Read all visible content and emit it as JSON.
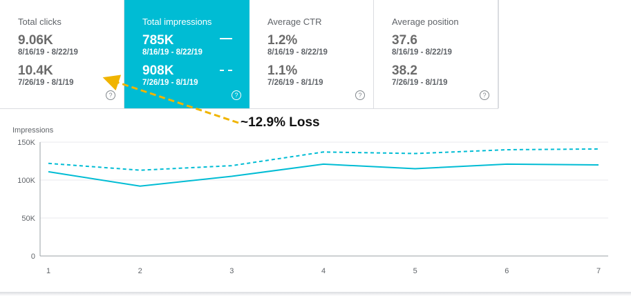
{
  "cards": [
    {
      "title": "Total clicks",
      "current_value": "9.06K",
      "current_range": "8/16/19 - 8/22/19",
      "previous_value": "10.4K",
      "previous_range": "7/26/19 - 8/1/19",
      "active": false
    },
    {
      "title": "Total impressions",
      "current_value": "785K",
      "current_range": "8/16/19 - 8/22/19",
      "previous_value": "908K",
      "previous_range": "7/26/19 - 8/1/19",
      "active": true
    },
    {
      "title": "Average CTR",
      "current_value": "1.2%",
      "current_range": "8/16/19 - 8/22/19",
      "previous_value": "1.1%",
      "previous_range": "7/26/19 - 8/1/19",
      "active": false
    },
    {
      "title": "Average position",
      "current_value": "37.6",
      "current_range": "8/16/19 - 8/22/19",
      "previous_value": "38.2",
      "previous_range": "7/26/19 - 8/1/19",
      "active": false
    }
  ],
  "help_icon": "?",
  "annotation": "~12.9% Loss",
  "colors": {
    "accent": "#00bcd4",
    "arrow": "#f0b400",
    "grid": "#e8eaed"
  },
  "chart_data": {
    "type": "line",
    "ylabel": "Impressions",
    "x": [
      1,
      2,
      3,
      4,
      5,
      6,
      7
    ],
    "ylim": [
      0,
      150000
    ],
    "yticks": [
      0,
      50000,
      100000,
      150000
    ],
    "ytick_labels": [
      "0",
      "50K",
      "100K",
      "150K"
    ],
    "grid": true,
    "series": [
      {
        "style": "solid",
        "values": [
          111000,
          92000,
          105000,
          121000,
          115000,
          121000,
          120000
        ]
      },
      {
        "style": "dashed",
        "values": [
          122000,
          113000,
          119000,
          137000,
          135000,
          140000,
          141000
        ]
      }
    ]
  }
}
